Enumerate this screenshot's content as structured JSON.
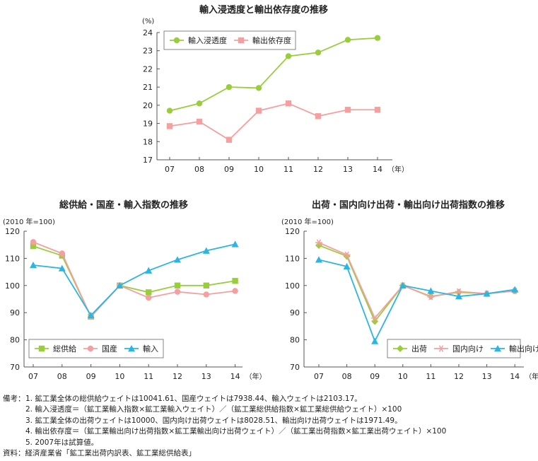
{
  "chart_data": [
    {
      "type": "line",
      "title": "輸入浸透度と輸出依存度の推移",
      "unit": "(%)",
      "x_suffix": "（年）",
      "categories": [
        "07",
        "08",
        "09",
        "10",
        "11",
        "12",
        "13",
        "14"
      ],
      "ylim": [
        17,
        24
      ],
      "yticks": [
        17,
        18,
        19,
        20,
        21,
        22,
        23,
        24
      ],
      "legend": "top-left",
      "series": [
        {
          "name": "輸入浸透度",
          "color": "#9ACD3C",
          "marker": "circle",
          "values": [
            19.7,
            20.1,
            21.0,
            20.95,
            22.7,
            22.9,
            23.6,
            23.7
          ]
        },
        {
          "name": "輸出依存度",
          "color": "#F4A0A0",
          "marker": "square",
          "values": [
            18.85,
            19.1,
            18.1,
            19.7,
            20.1,
            19.4,
            19.75,
            19.75
          ]
        }
      ]
    },
    {
      "type": "line",
      "title": "総供給・国産・輸入指数の推移",
      "unit": "(2010 年=100)",
      "x_suffix": "（年）",
      "categories": [
        "07",
        "08",
        "09",
        "10",
        "11",
        "12",
        "13",
        "14"
      ],
      "ylim": [
        70,
        120
      ],
      "yticks": [
        70,
        80,
        90,
        100,
        110,
        120
      ],
      "legend": "bottom-left",
      "series": [
        {
          "name": "総供給",
          "color": "#9ACD3C",
          "marker": "square",
          "values": [
            114.5,
            111.0,
            88.5,
            100,
            97.5,
            100,
            100,
            101.7
          ]
        },
        {
          "name": "国産",
          "color": "#F4A0A0",
          "marker": "circle",
          "values": [
            116.0,
            111.8,
            88.5,
            100,
            95.5,
            97.7,
            96.7,
            98.0
          ]
        },
        {
          "name": "輸入",
          "color": "#2BB5E0",
          "marker": "triangle",
          "values": [
            107.5,
            106.3,
            89.0,
            100,
            105.5,
            109.5,
            112.8,
            115.2
          ]
        }
      ]
    },
    {
      "type": "line",
      "title": "出荷・国内向け出荷・輸出向け出荷指数の推移",
      "unit": "(2010 年=100)",
      "x_suffix": "（年）",
      "categories": [
        "07",
        "08",
        "09",
        "10",
        "11",
        "12",
        "13",
        "14"
      ],
      "ylim": [
        70,
        120
      ],
      "yticks": [
        70,
        80,
        90,
        100,
        110,
        120
      ],
      "legend": "bottom-right",
      "series": [
        {
          "name": "出荷",
          "color": "#9ACD3C",
          "marker": "diamond",
          "values": [
            114.8,
            110.8,
            86.8,
            100,
            96.0,
            97.5,
            97.0,
            98.0
          ]
        },
        {
          "name": "国内向け",
          "color": "#F4A0A0",
          "marker": "asterisk",
          "values": [
            115.8,
            111.3,
            88.0,
            100,
            95.8,
            97.8,
            97.0,
            98.0
          ]
        },
        {
          "name": "輸出向け",
          "color": "#2BB5E0",
          "marker": "triangle",
          "values": [
            109.5,
            107.0,
            79.5,
            100,
            98.0,
            96.0,
            97.0,
            98.5
          ]
        }
      ]
    }
  ],
  "notes": {
    "label": "備考：",
    "lines": [
      "1. 鉱工業全体の総供給ウェイトは10041.61、国産ウェイトは7938.44、輸入ウェイトは2103.17。",
      "2. 輸入浸透度＝（鉱工業輸入指数×鉱工業輸入ウェイト）／（鉱工業総供給指数×鉱工業総供給ウェイト）×100",
      "3. 鉱工業全体の出荷ウェイトは10000、国内向け出荷ウェイトは8028.51、輸出向け出荷ウェイトは1971.49。",
      "4. 輸出依存度＝（鉱工業輸出向け出荷指数×鉱工業輸出向け出荷ウェイト）／（鉱工業出荷指数×鉱工業出荷ウェイト）×100",
      "5. 2007年は試算値。"
    ],
    "source": "資料：経済産業省「鉱工業出荷内訳表、鉱工業総供給表」"
  }
}
